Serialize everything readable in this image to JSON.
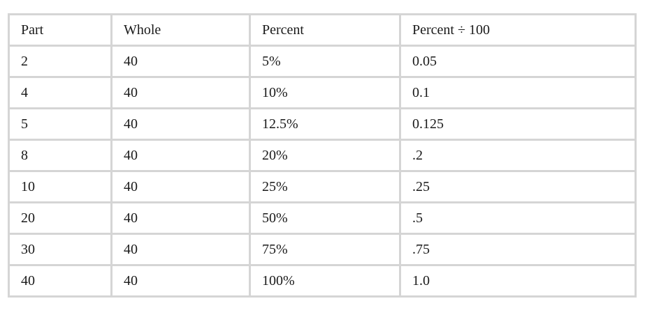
{
  "table": {
    "headers": [
      "Part",
      "Whole",
      "Percent",
      "Percent ÷ 100"
    ],
    "rows": [
      [
        "2",
        "40",
        "5%",
        "0.05"
      ],
      [
        "4",
        "40",
        "10%",
        "0.1"
      ],
      [
        "5",
        "40",
        "12.5%",
        "0.125"
      ],
      [
        "8",
        "40",
        "20%",
        ".2"
      ],
      [
        "10",
        "40",
        "25%",
        ".25"
      ],
      [
        "20",
        "40",
        "50%",
        ".5"
      ],
      [
        "30",
        "40",
        "75%",
        ".75"
      ],
      [
        "40",
        "40",
        "100%",
        "1.0"
      ]
    ]
  }
}
